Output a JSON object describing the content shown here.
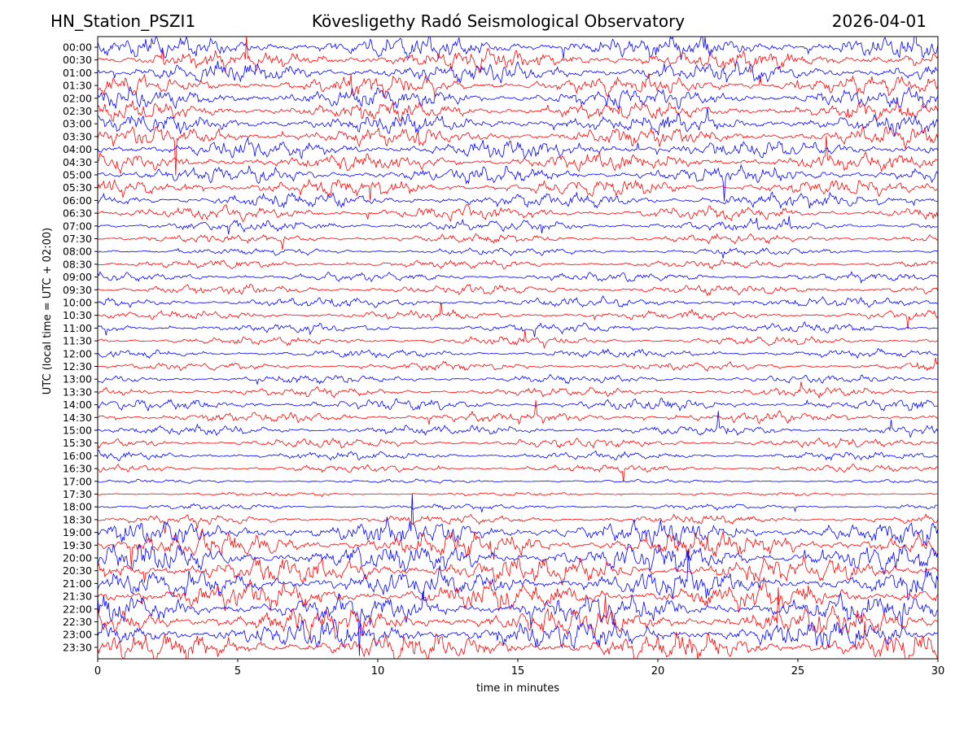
{
  "header": {
    "station": "HN_Station_PSZI1",
    "observatory": "Kövesligethy Radó Seismological Observatory",
    "date": "2026-04-01"
  },
  "chart_data": {
    "type": "line",
    "title": "Kövesligethy Radó Seismological Observatory",
    "xlabel": "time in minutes",
    "ylabel": "UTC (local time = UTC + 02:00)",
    "xlim": [
      0,
      30
    ],
    "x_ticks": [
      0,
      5,
      10,
      15,
      20,
      25,
      30
    ],
    "grid": false,
    "trace_colors": [
      "#0000ff",
      "#ff0000"
    ],
    "row_labels": [
      "00:00",
      "00:30",
      "01:00",
      "01:30",
      "02:00",
      "02:30",
      "03:00",
      "03:30",
      "04:00",
      "04:30",
      "05:00",
      "05:30",
      "06:00",
      "06:30",
      "07:00",
      "07:30",
      "08:00",
      "08:30",
      "09:00",
      "09:30",
      "10:00",
      "10:30",
      "11:00",
      "11:30",
      "12:00",
      "12:30",
      "13:00",
      "13:30",
      "14:00",
      "14:30",
      "15:00",
      "15:30",
      "16:00",
      "16:30",
      "17:00",
      "17:30",
      "18:00",
      "18:30",
      "19:00",
      "19:30",
      "20:00",
      "20:30",
      "21:00",
      "21:30",
      "22:00",
      "22:30",
      "23:00",
      "23:30"
    ],
    "row_activity": [
      2.4,
      2.2,
      2.3,
      2.1,
      2.2,
      2.0,
      2.1,
      2.0,
      2.0,
      1.9,
      1.9,
      1.8,
      1.7,
      1.5,
      1.2,
      1.0,
      0.8,
      0.9,
      1.0,
      1.1,
      1.1,
      1.0,
      1.0,
      0.9,
      0.9,
      0.9,
      0.9,
      1.0,
      1.2,
      1.2,
      1.1,
      1.0,
      0.9,
      0.8,
      0.4,
      0.4,
      0.6,
      1.0,
      2.6,
      2.8,
      3.0,
      3.0,
      3.0,
      3.0,
      3.0,
      3.0,
      3.0,
      3.0
    ]
  }
}
